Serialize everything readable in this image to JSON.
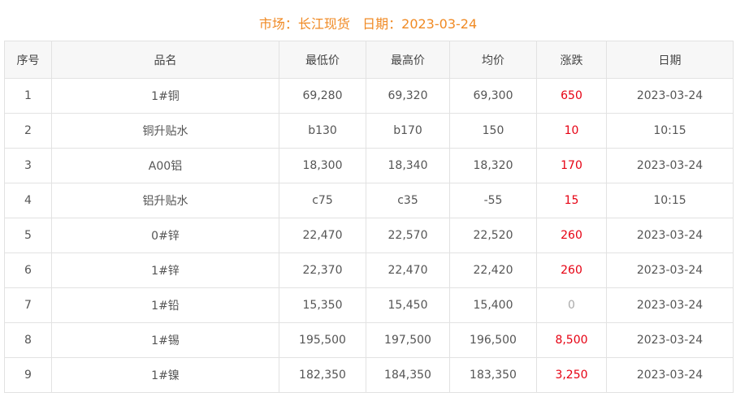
{
  "title": {
    "market_label": "市场：长江现货",
    "date_label": "日期：2023-03-24"
  },
  "colors": {
    "title": "#f08a24",
    "up": "#e60012",
    "flat": "#aaaaaa"
  },
  "columns": [
    "序号",
    "品名",
    "最低价",
    "最高价",
    "均价",
    "涨跌",
    "日期"
  ],
  "rows": [
    [
      "1",
      "1#铜",
      "69,280",
      "69,320",
      "69,300",
      "650",
      "2023-03-24"
    ],
    [
      "2",
      "铜升贴水",
      "b130",
      "b170",
      "150",
      "10",
      "10:15"
    ],
    [
      "3",
      "A00铝",
      "18,300",
      "18,340",
      "18,320",
      "170",
      "2023-03-24"
    ],
    [
      "4",
      "铝升贴水",
      "c75",
      "c35",
      "-55",
      "15",
      "10:15"
    ],
    [
      "5",
      "0#锌",
      "22,470",
      "22,570",
      "22,520",
      "260",
      "2023-03-24"
    ],
    [
      "6",
      "1#锌",
      "22,370",
      "22,470",
      "22,420",
      "260",
      "2023-03-24"
    ],
    [
      "7",
      "1#铅",
      "15,350",
      "15,450",
      "15,400",
      "0",
      "2023-03-24"
    ],
    [
      "8",
      "1#锡",
      "195,500",
      "197,500",
      "196,500",
      "8,500",
      "2023-03-24"
    ],
    [
      "9",
      "1#镍",
      "182,350",
      "184,350",
      "183,350",
      "3,250",
      "2023-03-24"
    ]
  ]
}
